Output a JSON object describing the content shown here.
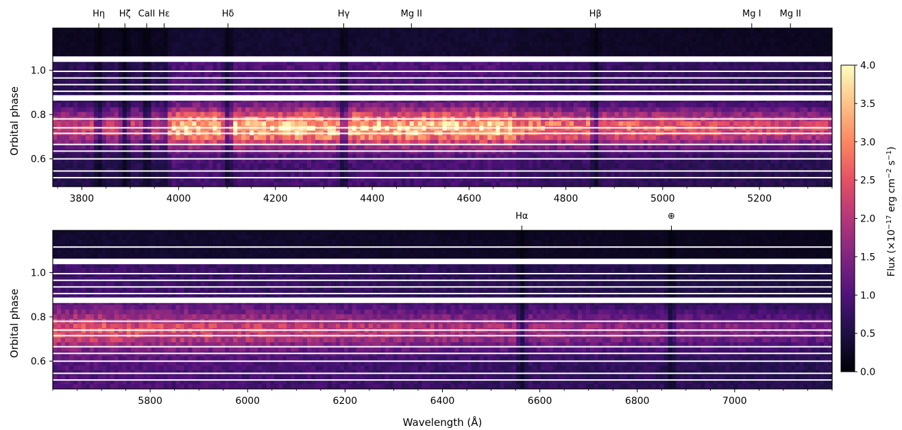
{
  "chart_data": [
    {
      "type": "heatmap",
      "panel": "top",
      "x_range": [
        3740,
        5350
      ],
      "y_range": [
        0.475,
        1.19
      ],
      "ylabel": "Orbital phase",
      "xlabel": "",
      "xticks": [
        3800,
        4000,
        4200,
        4400,
        4600,
        4800,
        5000,
        5200
      ],
      "yticks": [
        0.6,
        0.8,
        1.0
      ],
      "line_markers": [
        {
          "label": "Hη",
          "wavelength": 3835
        },
        {
          "label": "Hζ",
          "wavelength": 3889
        },
        {
          "label": "CaII",
          "wavelength": 3934
        },
        {
          "label": "Hε",
          "wavelength": 3970
        },
        {
          "label": "Hδ",
          "wavelength": 4102
        },
        {
          "label": "Hγ",
          "wavelength": 4341
        },
        {
          "label": "Mg II",
          "wavelength": 4481
        },
        {
          "label": "Hβ",
          "wavelength": 4861
        },
        {
          "label": "Mg I",
          "wavelength": 5184
        },
        {
          "label": "Mg II",
          "wavelength": 5264
        }
      ],
      "white_gaps_phase": [
        1.05,
        0.875,
        0.995,
        0.965,
        0.935,
        0.905,
        0.78,
        0.74,
        0.715,
        0.665,
        0.635,
        0.6,
        0.545,
        0.515
      ],
      "absorption_wavelengths": [
        3835,
        3889,
        3934,
        3970,
        4102,
        4341,
        4861
      ]
    },
    {
      "type": "heatmap",
      "panel": "bottom",
      "x_range": [
        5600,
        7200
      ],
      "y_range": [
        0.475,
        1.19
      ],
      "ylabel": "Orbital phase",
      "xlabel": "Wavelength (Å)",
      "xticks": [
        5800,
        6000,
        6200,
        6400,
        6600,
        6800,
        7000
      ],
      "yticks": [
        0.6,
        0.8,
        1.0
      ],
      "line_markers": [
        {
          "label": "Hα",
          "wavelength": 6563
        },
        {
          "label": "⊕",
          "wavelength": 6870
        }
      ],
      "white_gaps_phase": [
        1.05,
        0.875,
        0.995,
        0.965,
        0.935,
        0.905,
        0.78,
        0.74,
        0.715,
        0.665,
        0.635,
        0.6,
        0.545,
        0.515,
        1.115
      ],
      "absorption_wavelengths": [
        6563,
        6870
      ]
    }
  ],
  "colorbar": {
    "label_prefix": "Flux (×10",
    "label_exp1": "−17",
    "label_mid": " erg cm",
    "label_exp2": "−2",
    "label_mid2": " s",
    "label_exp3": "−1",
    "label_suffix": ")",
    "range": [
      0.0,
      4.0
    ],
    "ticks": [
      "0.0",
      "0.5",
      "1.0",
      "1.5",
      "2.0",
      "2.5",
      "3.0",
      "3.5",
      "4.0"
    ],
    "colormap": "magma",
    "stops": [
      "#000004",
      "#1c1044",
      "#4f127b",
      "#812581",
      "#b5367a",
      "#e55064",
      "#fb8761",
      "#fec287",
      "#fcfdbf"
    ]
  }
}
